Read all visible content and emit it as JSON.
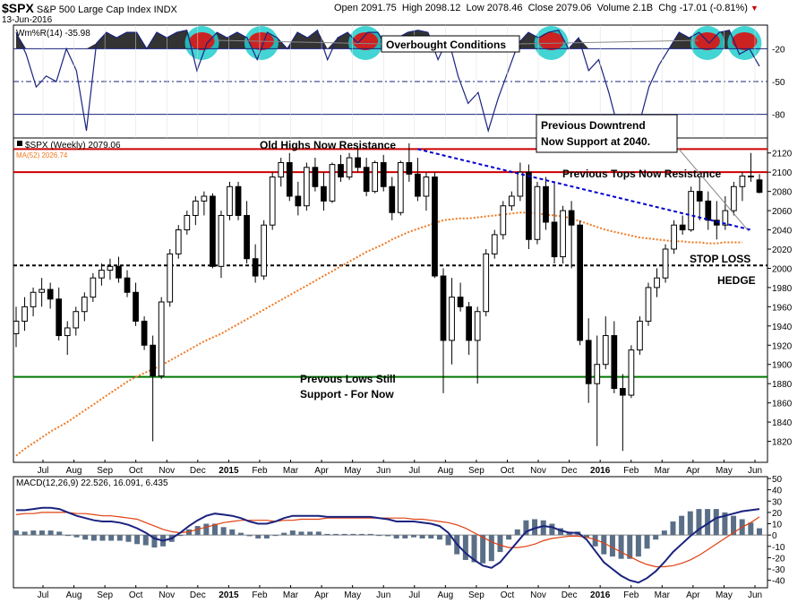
{
  "header": {
    "symbol": "$SPX",
    "name": "S&P 500 Large Cap Index",
    "exchange": "INDX",
    "date": "13-Jun-2016",
    "open_label": "Open",
    "open": "2091.75",
    "high_label": "High",
    "high": "2098.12",
    "low_label": "Low",
    "low": "2078.46",
    "close_label": "Close",
    "close": "2079.06",
    "volume_label": "Volume",
    "volume": "2.1B",
    "chg_label": "Chg",
    "chg": "-17.01 (-0.81%)",
    "chg_arrow": "▼"
  },
  "colors": {
    "up_candle": "#ffffff",
    "down_candle": "#000000",
    "resistance_line": "#cc0000",
    "support_line": "#007700",
    "trend_line": "#0000cc",
    "ma_line": "#f07820",
    "wr_line": "#1a237e",
    "wr_fill": "#333333",
    "overbought_fill": "#cc2222",
    "overbought_circle": "#22cccc",
    "macd_line": "#1a237e",
    "signal_line": "#e04010",
    "hist": "#5a6f87"
  },
  "x_axis": {
    "months": [
      "Jul",
      "Aug",
      "Sep",
      "Oct",
      "Nov",
      "Dec",
      "2015",
      "Feb",
      "Mar",
      "Apr",
      "May",
      "Jun",
      "Jul",
      "Aug",
      "Sep",
      "Oct",
      "Nov",
      "Dec",
      "2016",
      "Feb",
      "Mar",
      "Apr",
      "May",
      "Jun"
    ]
  },
  "annotations": {
    "overbought": "Overbought Conditions",
    "old_highs": "Old Highs Now Resistance",
    "prev_tops": "Previous Tops Now Resistance",
    "prev_downtrend_1": "Previous Downtrend",
    "prev_downtrend_2": "Now Support at 2040.",
    "stop_loss": "STOP LOSS",
    "hedge": "HEDGE",
    "prev_lows_1": "Prevous Lows Still",
    "prev_lows_2": "Support - For Now"
  },
  "chart_data": [
    {
      "type": "line",
      "panel": "indicator",
      "legend": "Wm%R(14) -35.98",
      "series": [
        {
          "name": "Wm%R(14)",
          "values": [
            -5,
            -25,
            -55,
            -45,
            -50,
            -20,
            -40,
            -95,
            -15,
            -5,
            -10,
            -5,
            -5,
            -20,
            -5,
            -10,
            -5,
            -3,
            -40,
            -15,
            -5,
            -10,
            -5,
            -10,
            -30,
            -5,
            -10,
            -20,
            -5,
            -10,
            -3,
            -30,
            -10,
            -5,
            -15,
            -5,
            -5,
            -20,
            -10,
            -5,
            -3,
            -5,
            -30,
            -10,
            -45,
            -70,
            -60,
            -95,
            -65,
            -40,
            -15,
            -5,
            -10,
            -5,
            -3,
            -20,
            -10,
            -40,
            -30,
            -60,
            -95,
            -80,
            -90,
            -55,
            -35,
            -20,
            -5,
            -10,
            -5,
            -15,
            -5,
            -3,
            -25,
            -20,
            -36
          ]
        }
      ],
      "ylim": [
        -100,
        0
      ],
      "y_ticks": [
        -20,
        -50,
        -80
      ]
    },
    {
      "type": "candlestick",
      "panel": "price",
      "title": "$SPX (Weekly) 2079.06",
      "ma_legend": "MA(52) 2026.74",
      "ylim": [
        1800,
        2130
      ],
      "y_ticks": [
        1820,
        1840,
        1860,
        1880,
        1900,
        1920,
        1940,
        1960,
        1980,
        2000,
        2020,
        2040,
        2060,
        2080,
        2100,
        2120
      ],
      "candles": [
        {
          "o": 1932,
          "h": 1960,
          "l": 1918,
          "c": 1945
        },
        {
          "o": 1945,
          "h": 1970,
          "l": 1935,
          "c": 1960
        },
        {
          "o": 1960,
          "h": 1980,
          "l": 1950,
          "c": 1975
        },
        {
          "o": 1975,
          "h": 1990,
          "l": 1960,
          "c": 1978
        },
        {
          "o": 1978,
          "h": 1985,
          "l": 1958,
          "c": 1968
        },
        {
          "o": 1968,
          "h": 1980,
          "l": 1925,
          "c": 1930
        },
        {
          "o": 1930,
          "h": 1945,
          "l": 1910,
          "c": 1938
        },
        {
          "o": 1938,
          "h": 1960,
          "l": 1930,
          "c": 1955
        },
        {
          "o": 1955,
          "h": 1975,
          "l": 1945,
          "c": 1970
        },
        {
          "o": 1970,
          "h": 1995,
          "l": 1965,
          "c": 1990
        },
        {
          "o": 1990,
          "h": 2005,
          "l": 1982,
          "c": 1998
        },
        {
          "o": 1998,
          "h": 2010,
          "l": 1988,
          "c": 2002
        },
        {
          "o": 2002,
          "h": 2012,
          "l": 1985,
          "c": 1990
        },
        {
          "o": 1990,
          "h": 1998,
          "l": 1970,
          "c": 1975
        },
        {
          "o": 1975,
          "h": 1985,
          "l": 1940,
          "c": 1945
        },
        {
          "o": 1945,
          "h": 1950,
          "l": 1915,
          "c": 1920
        },
        {
          "o": 1920,
          "h": 1930,
          "l": 1820,
          "c": 1888
        },
        {
          "o": 1888,
          "h": 1970,
          "l": 1885,
          "c": 1965
        },
        {
          "o": 1965,
          "h": 2020,
          "l": 1960,
          "c": 2015
        },
        {
          "o": 2015,
          "h": 2045,
          "l": 2010,
          "c": 2040
        },
        {
          "o": 2040,
          "h": 2060,
          "l": 2035,
          "c": 2055
        },
        {
          "o": 2055,
          "h": 2075,
          "l": 2045,
          "c": 2070
        },
        {
          "o": 2070,
          "h": 2080,
          "l": 2055,
          "c": 2075
        },
        {
          "o": 2075,
          "h": 2078,
          "l": 2000,
          "c": 2002
        },
        {
          "o": 2002,
          "h": 2060,
          "l": 1990,
          "c": 2055
        },
        {
          "o": 2055,
          "h": 2090,
          "l": 2050,
          "c": 2085
        },
        {
          "o": 2085,
          "h": 2090,
          "l": 2050,
          "c": 2055
        },
        {
          "o": 2055,
          "h": 2070,
          "l": 2005,
          "c": 2010
        },
        {
          "o": 2010,
          "h": 2025,
          "l": 1985,
          "c": 1992
        },
        {
          "o": 1992,
          "h": 2050,
          "l": 1988,
          "c": 2045
        },
        {
          "o": 2045,
          "h": 2100,
          "l": 2040,
          "c": 2095
        },
        {
          "o": 2095,
          "h": 2115,
          "l": 2085,
          "c": 2110
        },
        {
          "o": 2110,
          "h": 2120,
          "l": 2070,
          "c": 2075
        },
        {
          "o": 2075,
          "h": 2090,
          "l": 2055,
          "c": 2065
        },
        {
          "o": 2065,
          "h": 2110,
          "l": 2060,
          "c": 2105
        },
        {
          "o": 2105,
          "h": 2115,
          "l": 2080,
          "c": 2085
        },
        {
          "o": 2085,
          "h": 2100,
          "l": 2060,
          "c": 2070
        },
        {
          "o": 2070,
          "h": 2110,
          "l": 2068,
          "c": 2108
        },
        {
          "o": 2108,
          "h": 2118,
          "l": 2090,
          "c": 2095
        },
        {
          "o": 2095,
          "h": 2120,
          "l": 2092,
          "c": 2115
        },
        {
          "o": 2115,
          "h": 2125,
          "l": 2100,
          "c": 2105
        },
        {
          "o": 2105,
          "h": 2115,
          "l": 2075,
          "c": 2080
        },
        {
          "o": 2080,
          "h": 2112,
          "l": 2078,
          "c": 2110
        },
        {
          "o": 2110,
          "h": 2118,
          "l": 2080,
          "c": 2085
        },
        {
          "o": 2085,
          "h": 2095,
          "l": 2050,
          "c": 2058
        },
        {
          "o": 2058,
          "h": 2112,
          "l": 2055,
          "c": 2110
        },
        {
          "o": 2110,
          "h": 2130,
          "l": 2090,
          "c": 2098
        },
        {
          "o": 2098,
          "h": 2115,
          "l": 2070,
          "c": 2075
        },
        {
          "o": 2075,
          "h": 2100,
          "l": 2060,
          "c": 2095
        },
        {
          "o": 2095,
          "h": 2100,
          "l": 1990,
          "c": 1992
        },
        {
          "o": 1992,
          "h": 2000,
          "l": 1870,
          "c": 1925
        },
        {
          "o": 1925,
          "h": 1990,
          "l": 1900,
          "c": 1970
        },
        {
          "o": 1970,
          "h": 1985,
          "l": 1955,
          "c": 1960
        },
        {
          "o": 1960,
          "h": 1965,
          "l": 1910,
          "c": 1925
        },
        {
          "o": 1925,
          "h": 1960,
          "l": 1880,
          "c": 1955
        },
        {
          "o": 1955,
          "h": 2020,
          "l": 1950,
          "c": 2015
        },
        {
          "o": 2015,
          "h": 2040,
          "l": 2010,
          "c": 2035
        },
        {
          "o": 2035,
          "h": 2070,
          "l": 2030,
          "c": 2065
        },
        {
          "o": 2065,
          "h": 2080,
          "l": 2060,
          "c": 2075
        },
        {
          "o": 2075,
          "h": 2110,
          "l": 2070,
          "c": 2100
        },
        {
          "o": 2100,
          "h": 2108,
          "l": 2020,
          "c": 2030
        },
        {
          "o": 2030,
          "h": 2090,
          "l": 2025,
          "c": 2085
        },
        {
          "o": 2085,
          "h": 2095,
          "l": 2040,
          "c": 2048
        },
        {
          "o": 2048,
          "h": 2090,
          "l": 2005,
          "c": 2012
        },
        {
          "o": 2012,
          "h": 2065,
          "l": 2005,
          "c": 2060
        },
        {
          "o": 2060,
          "h": 2070,
          "l": 2000,
          "c": 2045
        },
        {
          "o": 2045,
          "h": 2050,
          "l": 1920,
          "c": 1925
        },
        {
          "o": 1925,
          "h": 1948,
          "l": 1860,
          "c": 1880
        },
        {
          "o": 1880,
          "h": 1930,
          "l": 1815,
          "c": 1900
        },
        {
          "o": 1900,
          "h": 1950,
          "l": 1895,
          "c": 1930
        },
        {
          "o": 1930,
          "h": 1945,
          "l": 1870,
          "c": 1875
        },
        {
          "o": 1875,
          "h": 1890,
          "l": 1810,
          "c": 1868
        },
        {
          "o": 1868,
          "h": 1920,
          "l": 1865,
          "c": 1915
        },
        {
          "o": 1915,
          "h": 1950,
          "l": 1910,
          "c": 1945
        },
        {
          "o": 1945,
          "h": 1985,
          "l": 1940,
          "c": 1980
        },
        {
          "o": 1980,
          "h": 2000,
          "l": 1970,
          "c": 1990
        },
        {
          "o": 1990,
          "h": 2025,
          "l": 1985,
          "c": 2020
        },
        {
          "o": 2020,
          "h": 2050,
          "l": 2015,
          "c": 2045
        },
        {
          "o": 2045,
          "h": 2055,
          "l": 2035,
          "c": 2040
        },
        {
          "o": 2040,
          "h": 2085,
          "l": 2038,
          "c": 2080
        },
        {
          "o": 2080,
          "h": 2095,
          "l": 2050,
          "c": 2070
        },
        {
          "o": 2070,
          "h": 2080,
          "l": 2040,
          "c": 2050
        },
        {
          "o": 2050,
          "h": 2070,
          "l": 2030,
          "c": 2045
        },
        {
          "o": 2045,
          "h": 2075,
          "l": 2040,
          "c": 2060
        },
        {
          "o": 2060,
          "h": 2090,
          "l": 2055,
          "c": 2085
        },
        {
          "o": 2085,
          "h": 2100,
          "l": 2070,
          "c": 2096
        },
        {
          "o": 2096,
          "h": 2120,
          "l": 2090,
          "c": 2096
        },
        {
          "o": 2092,
          "h": 2098,
          "l": 2078,
          "c": 2079
        }
      ],
      "ma52": [
        1805,
        1812,
        1818,
        1824,
        1830,
        1835,
        1840,
        1846,
        1852,
        1858,
        1864,
        1870,
        1876,
        1882,
        1887,
        1891,
        1895,
        1899,
        1904,
        1909,
        1914,
        1919,
        1924,
        1928,
        1932,
        1937,
        1942,
        1947,
        1952,
        1957,
        1962,
        1967,
        1972,
        1977,
        1982,
        1987,
        1992,
        1997,
        2002,
        2007,
        2012,
        2017,
        2021,
        2025,
        2030,
        2034,
        2038,
        2041,
        2044,
        2047,
        2050,
        2051,
        2052,
        2052,
        2053,
        2054,
        2055,
        2056,
        2057,
        2058,
        2058,
        2057,
        2056,
        2055,
        2054,
        2052,
        2049,
        2046,
        2043,
        2040,
        2038,
        2036,
        2034,
        2032,
        2031,
        2030,
        2029,
        2028,
        2028,
        2027,
        2027,
        2026,
        2026,
        2027,
        2027,
        2027
      ],
      "levels": [
        {
          "name": "old-highs-resistance",
          "value": 2124
        },
        {
          "name": "previous-tops-resistance",
          "value": 2100
        },
        {
          "name": "hedge",
          "value": 2003
        },
        {
          "name": "previous-lows-support",
          "value": 1887
        }
      ],
      "trendline": {
        "from": {
          "index": 47,
          "value": 2124
        },
        "to": {
          "index": 86,
          "value": 2040
        }
      }
    },
    {
      "type": "bar+line",
      "panel": "macd",
      "legend": "MACD(12,26,9) 22.526, 16.091, 6.435",
      "ylim": [
        -45,
        50
      ],
      "y_ticks": [
        50,
        40,
        30,
        20,
        10,
        0,
        -10,
        -20,
        -30,
        -40
      ],
      "series": [
        {
          "name": "MACD",
          "values": [
            22,
            22,
            23,
            24,
            24,
            23,
            20,
            17,
            15,
            13,
            12,
            12,
            11,
            9,
            6,
            2,
            -3,
            -5,
            -3,
            2,
            8,
            13,
            17,
            19,
            18,
            17,
            15,
            12,
            10,
            10,
            12,
            15,
            17,
            17,
            17,
            17,
            16,
            16,
            16,
            16,
            16,
            16,
            15,
            14,
            12,
            12,
            12,
            11,
            10,
            8,
            2,
            -8,
            -16,
            -22,
            -27,
            -29,
            -24,
            -15,
            -6,
            3,
            6,
            8,
            7,
            4,
            2,
            2,
            -4,
            -14,
            -24,
            -30,
            -36,
            -40,
            -42,
            -38,
            -32,
            -24,
            -15,
            -8,
            -1,
            5,
            10,
            15,
            17,
            19,
            21,
            22,
            23
          ]
        },
        {
          "name": "Signal",
          "values": [
            18,
            19,
            19,
            20,
            20,
            20,
            20,
            19,
            19,
            18,
            17,
            17,
            16,
            15,
            14,
            11,
            8,
            5,
            3,
            2,
            3,
            5,
            7,
            9,
            11,
            12,
            13,
            13,
            13,
            13,
            12,
            13,
            13,
            14,
            14,
            14,
            15,
            15,
            15,
            15,
            15,
            15,
            15,
            15,
            15,
            15,
            14,
            14,
            13,
            12,
            11,
            9,
            6,
            2,
            -2,
            -6,
            -9,
            -11,
            -11,
            -10,
            -8,
            -5,
            -3,
            -2,
            -1,
            -1,
            -2,
            -4,
            -7,
            -11,
            -15,
            -19,
            -23,
            -26,
            -28,
            -28,
            -27,
            -25,
            -22,
            -18,
            -13,
            -8,
            -3,
            2,
            7,
            11,
            16
          ]
        },
        {
          "name": "Histogram",
          "values": [
            4,
            3,
            4,
            4,
            4,
            3,
            0,
            -2,
            -4,
            -5,
            -5,
            -5,
            -5,
            -6,
            -8,
            -9,
            -11,
            -10,
            -6,
            0,
            5,
            8,
            10,
            10,
            7,
            5,
            2,
            -1,
            -3,
            -3,
            0,
            2,
            4,
            3,
            3,
            3,
            1,
            1,
            1,
            1,
            1,
            1,
            0,
            -1,
            -3,
            -3,
            -2,
            -3,
            -3,
            -4,
            -9,
            -17,
            -22,
            -24,
            -25,
            -23,
            -15,
            -4,
            5,
            13,
            14,
            13,
            10,
            6,
            3,
            3,
            -2,
            -10,
            -17,
            -19,
            -21,
            -21,
            -19,
            -12,
            -4,
            4,
            12,
            17,
            21,
            23,
            23,
            23,
            20,
            17,
            14,
            11,
            6
          ]
        }
      ]
    }
  ]
}
